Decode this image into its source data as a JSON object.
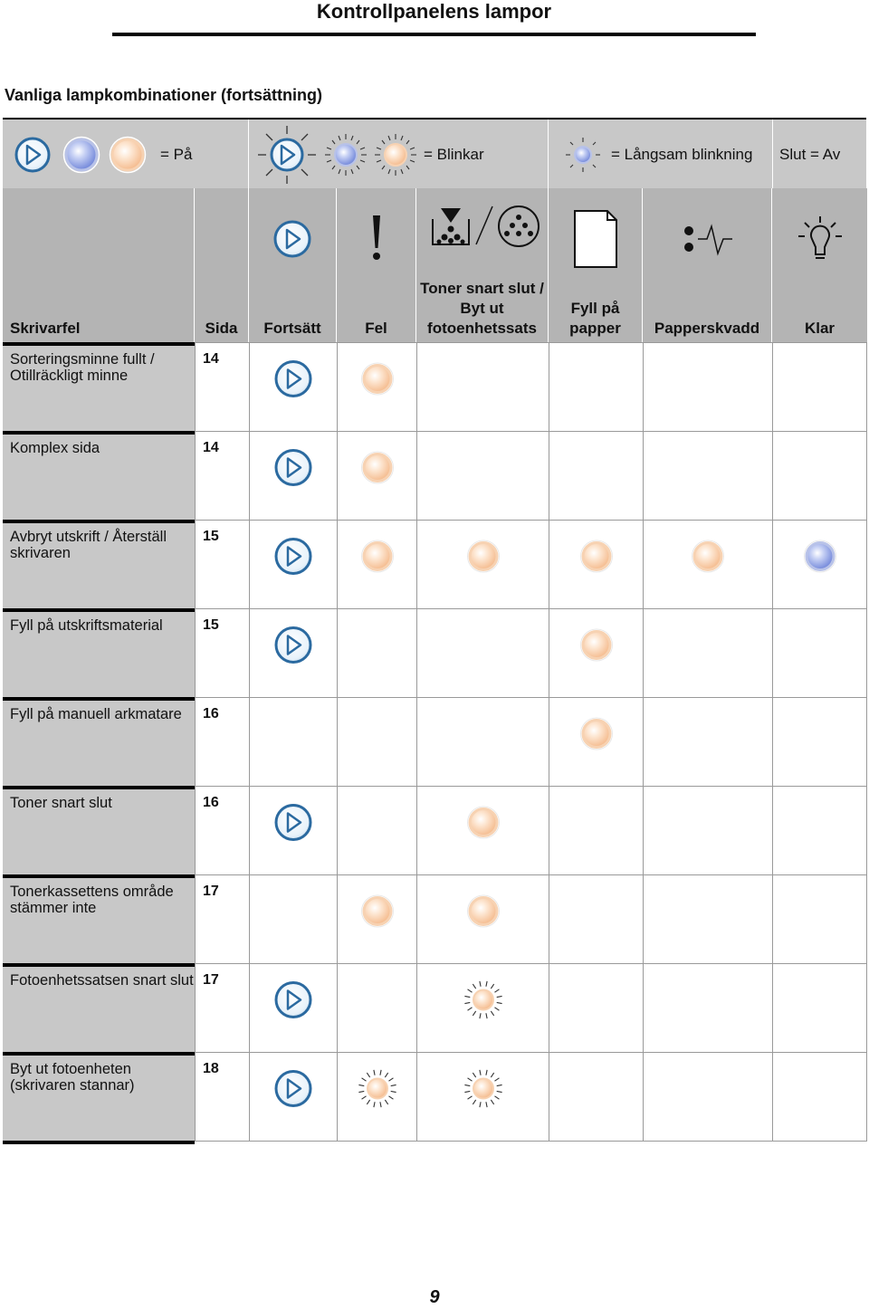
{
  "page_title": "Kontrollpanelens lampor",
  "section_title": "Vanliga lampkombinationer (fortsättning)",
  "legend": {
    "on": "= På",
    "blink": "= Blinkar",
    "slow": "= Långsam blinkning",
    "off": "Slut = Av"
  },
  "headers": {
    "error": "Skrivarfel",
    "page": "Sida",
    "continue": "Fortsätt",
    "fault": "Fel",
    "toner": "Toner snart slut / Byt ut fotoenhetssats",
    "paper": "Fyll på papper",
    "jam": "Papperskvadd",
    "ready": "Klar"
  },
  "colors": {
    "orange_lamp": "#f4b889",
    "blue_lamp": "#6c82d8",
    "button_blue": "#2b6aa0",
    "header_gray": "#b4b4b4",
    "name_gray": "#c8c8c8"
  },
  "rows": [
    {
      "name": "Sorteringsminne fullt / Otillräckligt minne",
      "page": "14",
      "continue": "on",
      "fault": "on",
      "toner": "",
      "paper": "",
      "jam": "",
      "ready": ""
    },
    {
      "name": "Komplex sida",
      "page": "14",
      "continue": "on",
      "fault": "on",
      "toner": "",
      "paper": "",
      "jam": "",
      "ready": ""
    },
    {
      "name": "Avbryt utskrift / Återställ skrivaren",
      "page": "15",
      "continue": "on",
      "fault": "on",
      "toner": "on",
      "paper": "on",
      "jam": "on",
      "ready": "on"
    },
    {
      "name": "Fyll på utskriftsmaterial",
      "page": "15",
      "continue": "on",
      "fault": "",
      "toner": "",
      "paper": "on",
      "jam": "",
      "ready": ""
    },
    {
      "name": "Fyll på manuell arkmatare",
      "page": "16",
      "continue": "",
      "fault": "",
      "toner": "",
      "paper": "on",
      "jam": "",
      "ready": ""
    },
    {
      "name": "Toner snart slut",
      "page": "16",
      "continue": "on",
      "fault": "",
      "toner": "on",
      "paper": "",
      "jam": "",
      "ready": ""
    },
    {
      "name": "Tonerkassettens område stämmer inte",
      "page": "17",
      "continue": "",
      "fault": "on",
      "toner": "on",
      "paper": "",
      "jam": "",
      "ready": ""
    },
    {
      "name": "Fotoenhetssatsen snart slut",
      "page": "17",
      "continue": "on",
      "fault": "",
      "toner": "blink",
      "paper": "",
      "jam": "",
      "ready": ""
    },
    {
      "name": "Byt ut fotoenheten (skrivaren stannar)",
      "page": "18",
      "continue": "on",
      "fault": "blink",
      "toner": "blink",
      "paper": "",
      "jam": "",
      "ready": ""
    }
  ],
  "page_number": "9"
}
